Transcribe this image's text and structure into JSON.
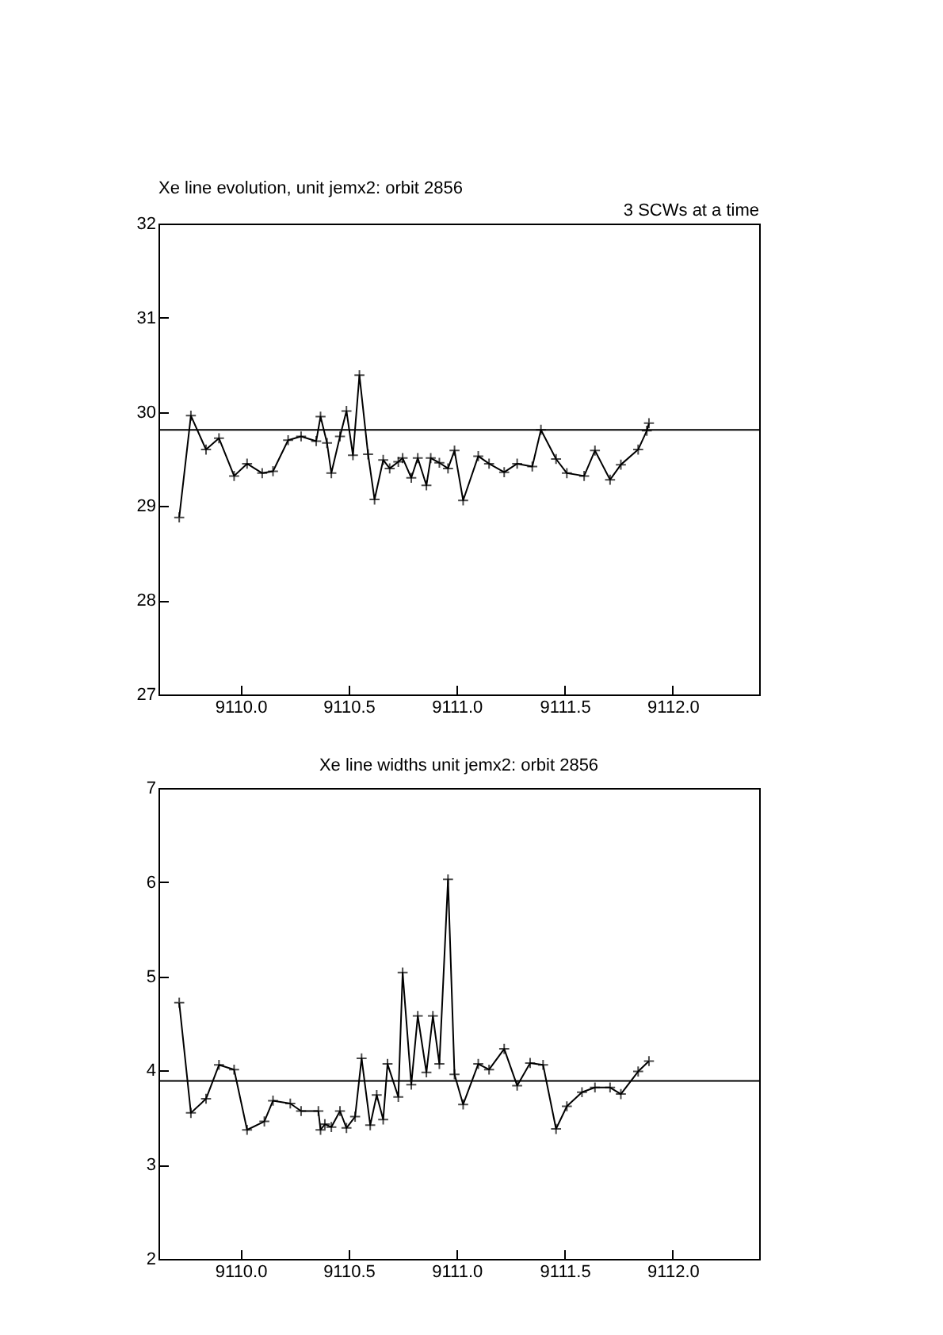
{
  "chart_data": [
    {
      "type": "line",
      "title": "Xe line evolution, unit jemx2: orbit 2856",
      "annotations": [
        "3 SCWs at a time"
      ],
      "marker": "cross",
      "grid": false,
      "x": [
        9109.716,
        9109.77,
        9109.84,
        9109.9,
        9109.97,
        9110.03,
        9110.1,
        9110.15,
        9110.22,
        9110.28,
        9110.35,
        9110.37,
        9110.4,
        9110.42,
        9110.46,
        9110.49,
        9110.52,
        9110.55,
        9110.59,
        9110.62,
        9110.66,
        9110.69,
        9110.73,
        9110.75,
        9110.79,
        9110.82,
        9110.86,
        9110.88,
        9110.92,
        9110.96,
        9110.99,
        9111.03,
        9111.1,
        9111.15,
        9111.22,
        9111.28,
        9111.35,
        9111.39,
        9111.46,
        9111.51,
        9111.59,
        9111.64,
        9111.71,
        9111.76,
        9111.84,
        9111.88,
        9111.89
      ],
      "series": [
        {
          "color": "#000000",
          "values": [
            28.88,
            29.96,
            29.6,
            29.72,
            29.32,
            29.45,
            29.35,
            29.37,
            29.7,
            29.74,
            29.69,
            29.95,
            29.67,
            29.35,
            29.74,
            30.01,
            29.54,
            30.39,
            29.55,
            29.07,
            29.49,
            29.4,
            29.47,
            29.51,
            29.3,
            29.51,
            29.22,
            29.51,
            29.46,
            29.4,
            29.59,
            29.06,
            29.53,
            29.45,
            29.36,
            29.45,
            29.42,
            29.81,
            29.5,
            29.35,
            29.32,
            29.59,
            29.28,
            29.44,
            29.6,
            29.8,
            29.88
          ]
        }
      ],
      "ref_lines": [
        {
          "axis": "y",
          "value": 29.81,
          "color": "#000000"
        }
      ],
      "xlim": [
        9109.62,
        9112.4
      ],
      "xticks": [
        {
          "value": 9110,
          "label": "9110.0"
        },
        {
          "value": 9110.5,
          "label": "9110.5"
        },
        {
          "value": 9111,
          "label": "9111.0"
        },
        {
          "value": 9111.5,
          "label": "9111.5"
        },
        {
          "value": 9112,
          "label": "9112.0"
        }
      ],
      "ylim": [
        27,
        32
      ],
      "yticks": [
        27,
        28,
        29,
        30,
        31,
        32
      ]
    },
    {
      "type": "line",
      "title": "Xe line widths unit jemx2: orbit 2856",
      "marker": "cross",
      "grid": false,
      "x": [
        9109.716,
        9109.77,
        9109.84,
        9109.9,
        9109.97,
        9110.03,
        9110.11,
        9110.15,
        9110.23,
        9110.28,
        9110.36,
        9110.37,
        9110.39,
        9110.42,
        9110.46,
        9110.49,
        9110.53,
        9110.56,
        9110.6,
        9110.63,
        9110.66,
        9110.68,
        9110.73,
        9110.75,
        9110.79,
        9110.82,
        9110.86,
        9110.89,
        9110.92,
        9110.96,
        9110.99,
        9111.03,
        9111.1,
        9111.15,
        9111.22,
        9111.28,
        9111.34,
        9111.4,
        9111.46,
        9111.51,
        9111.58,
        9111.64,
        9111.71,
        9111.76,
        9111.84,
        9111.89
      ],
      "series": [
        {
          "color": "#000000",
          "values": [
            4.72,
            3.55,
            3.7,
            4.06,
            4.01,
            3.37,
            3.46,
            3.68,
            3.65,
            3.57,
            3.57,
            3.37,
            3.43,
            3.4,
            3.57,
            3.39,
            3.51,
            4.13,
            3.42,
            3.74,
            3.48,
            4.07,
            3.72,
            5.04,
            3.85,
            4.58,
            3.98,
            4.58,
            4.07,
            6.03,
            3.96,
            3.64,
            4.07,
            4.01,
            4.23,
            3.84,
            4.08,
            4.06,
            3.38,
            3.62,
            3.77,
            3.82,
            3.82,
            3.75,
            3.99,
            4.1
          ]
        }
      ],
      "ref_lines": [
        {
          "axis": "y",
          "value": 3.89,
          "color": "#000000"
        }
      ],
      "xlim": [
        9109.62,
        9112.4
      ],
      "xticks": [
        {
          "value": 9110,
          "label": "9110.0"
        },
        {
          "value": 9110.5,
          "label": "9110.5"
        },
        {
          "value": 9111,
          "label": "9111.0"
        },
        {
          "value": 9111.5,
          "label": "9111.5"
        },
        {
          "value": 9112,
          "label": "9112.0"
        }
      ],
      "ylim": [
        2,
        7
      ],
      "yticks": [
        2,
        3,
        4,
        5,
        6,
        7
      ]
    }
  ]
}
